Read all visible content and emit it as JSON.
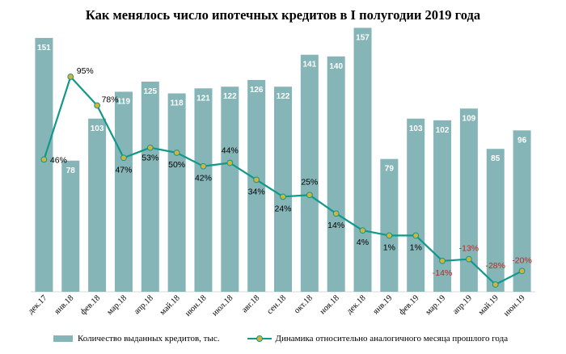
{
  "chart_data": {
    "type": "bar",
    "title": "Как менялось число ипотечных кредитов в I полугодии 2019 года",
    "categories": [
      "дек.17",
      "янв.18",
      "фев.18",
      "мар.18",
      "апр.18",
      "май.18",
      "июн.18",
      "июл.18",
      "авг.18",
      "сен.18",
      "окт.18",
      "ноя.18",
      "дек.18",
      "янв.19",
      "фев.19",
      "мар.19",
      "апр.19",
      "май.19",
      "июн.19"
    ],
    "series": [
      {
        "name": "Количество выданных кредитов, тыс.",
        "type": "bar",
        "values": [
          151,
          78,
          103,
          119,
          125,
          118,
          121,
          122,
          126,
          122,
          141,
          140,
          157,
          79,
          103,
          102,
          109,
          85,
          96
        ],
        "color": "#86b5b8"
      },
      {
        "name": "Динамика относительно аналогичного месяца прошлого года",
        "type": "line",
        "values": [
          46,
          95,
          78,
          47,
          53,
          50,
          42,
          44,
          34,
          24,
          25,
          14,
          4,
          1,
          1,
          -14,
          -13,
          -28,
          -20
        ],
        "labels": [
          "46%",
          "95%",
          "78%",
          "47%",
          "53%",
          "50%",
          "42%",
          "44%",
          "34%",
          "24%",
          "25%",
          "14%",
          "4%",
          "1%",
          "1%",
          "-14%",
          "-13%",
          "-28%",
          "-20%"
        ],
        "color": "#12988a",
        "marker_color": "#d4b33a",
        "negative_label_color": "#c0261f"
      }
    ],
    "ylim_bars": [
      0,
      160
    ],
    "ylim_line": [
      -40,
      100
    ],
    "grid": false,
    "legend_position": "bottom"
  }
}
